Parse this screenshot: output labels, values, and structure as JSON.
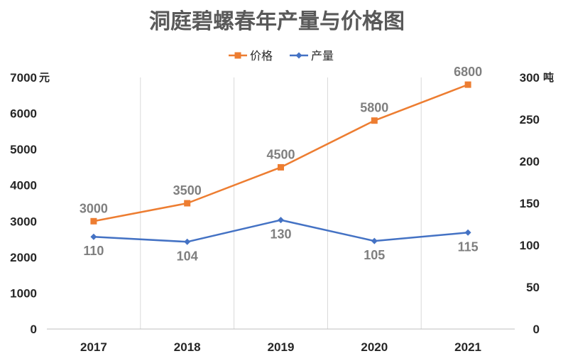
{
  "chart_data": {
    "type": "line",
    "title": "洞庭碧螺春年产量与价格图",
    "categories": [
      "2017",
      "2018",
      "2019",
      "2020",
      "2021"
    ],
    "series": [
      {
        "name": "价格",
        "axis": "left",
        "color": "#ED7D31",
        "marker": "square",
        "values": [
          3000,
          3500,
          4500,
          5800,
          6800
        ]
      },
      {
        "name": "产量",
        "axis": "right",
        "color": "#4472C4",
        "marker": "diamond",
        "values": [
          110,
          104,
          130,
          105,
          115
        ]
      }
    ],
    "left_axis": {
      "unit": "元",
      "range": [
        0,
        7000
      ],
      "ticks": [
        "0",
        "1000",
        "2000",
        "3000",
        "4000",
        "5000",
        "6000",
        "7000"
      ]
    },
    "right_axis": {
      "unit": "吨",
      "range": [
        0,
        300
      ],
      "ticks": [
        "0",
        "50",
        "100",
        "150",
        "200",
        "250",
        "300"
      ]
    },
    "data_labels": {
      "价格": "above",
      "产量": "below"
    },
    "legend_position": "top",
    "vertical_grid": true
  }
}
